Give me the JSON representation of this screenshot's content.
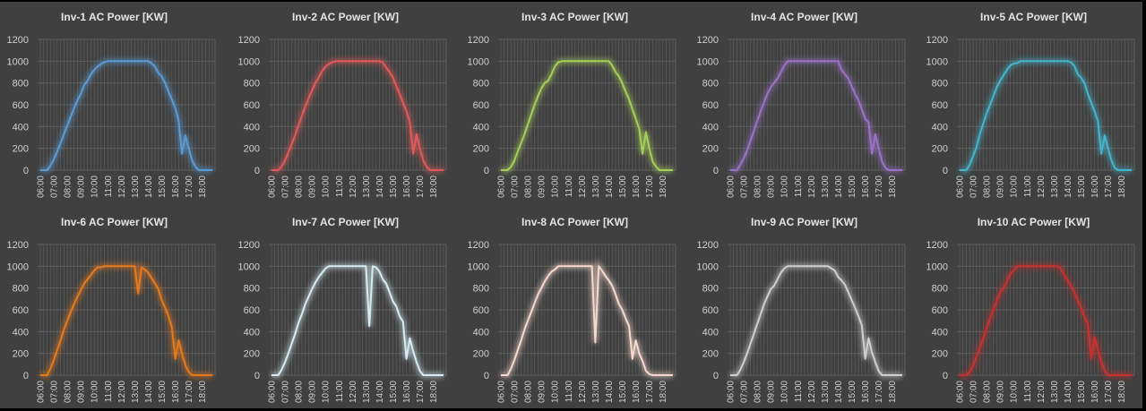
{
  "chart_data": [
    {
      "type": "line",
      "title": "Inv-1 AC Power [KW]",
      "color": "#5b9bd5",
      "xlabel": "",
      "ylabel": "",
      "ylim": [
        0,
        1200
      ],
      "yticks": [
        0,
        200,
        400,
        600,
        800,
        1000,
        1200
      ],
      "xtick_labels": [
        "06:00",
        "07:00",
        "08:00",
        "09:00",
        "10:00",
        "11:00",
        "12:00",
        "13:00",
        "14:00",
        "15:00",
        "16:00",
        "17:00",
        "18:00"
      ],
      "grid": true,
      "values": [
        0,
        0,
        0,
        40,
        100,
        170,
        250,
        330,
        410,
        490,
        570,
        640,
        700,
        780,
        820,
        880,
        920,
        950,
        975,
        990,
        1000,
        1000,
        1000,
        1000,
        1000,
        1000,
        1000,
        1000,
        1000,
        1000,
        1000,
        1000,
        1000,
        980,
        950,
        890,
        860,
        800,
        720,
        650,
        570,
        450,
        150,
        320,
        200,
        90,
        30,
        0,
        0,
        0,
        0,
        0
      ]
    },
    {
      "type": "line",
      "title": "Inv-2 AC Power [KW]",
      "color": "#e05a5a",
      "ylim": [
        0,
        1200
      ],
      "yticks": [
        0,
        200,
        400,
        600,
        800,
        1000,
        1200
      ],
      "xtick_labels": [
        "06:00",
        "07:00",
        "08:00",
        "09:00",
        "10:00",
        "11:00",
        "12:00",
        "13:00",
        "14:00",
        "15:00",
        "16:00",
        "17:00",
        "18:00"
      ],
      "grid": true,
      "values": [
        0,
        0,
        0,
        30,
        90,
        160,
        240,
        320,
        410,
        500,
        580,
        660,
        730,
        800,
        850,
        910,
        950,
        975,
        990,
        1000,
        1000,
        1000,
        1000,
        1000,
        1000,
        1000,
        1000,
        1000,
        1000,
        1000,
        1000,
        1000,
        1000,
        990,
        940,
        900,
        850,
        770,
        700,
        620,
        540,
        440,
        150,
        330,
        200,
        90,
        30,
        0,
        0,
        0,
        0,
        0
      ]
    },
    {
      "type": "line",
      "title": "Inv-3 AC Power [KW]",
      "color": "#a5cf5a",
      "ylim": [
        0,
        1200
      ],
      "yticks": [
        0,
        200,
        400,
        600,
        800,
        1000,
        1200
      ],
      "xtick_labels": [
        "06:00",
        "07:00",
        "08:00",
        "09:00",
        "10:00",
        "11:00",
        "12:00",
        "13:00",
        "14:00",
        "15:00",
        "16:00",
        "17:00",
        "18:00"
      ],
      "grid": true,
      "values": [
        0,
        0,
        0,
        30,
        90,
        170,
        250,
        330,
        420,
        510,
        600,
        680,
        750,
        800,
        820,
        880,
        950,
        990,
        1000,
        1000,
        1000,
        1000,
        1000,
        1000,
        1000,
        1000,
        1000,
        1000,
        1000,
        1000,
        1000,
        1000,
        1000,
        960,
        900,
        860,
        800,
        720,
        650,
        560,
        470,
        380,
        150,
        350,
        200,
        80,
        30,
        0,
        0,
        0,
        0,
        0
      ]
    },
    {
      "type": "line",
      "title": "Inv-4 AC Power [KW]",
      "color": "#9a73c8",
      "ylim": [
        0,
        1200
      ],
      "yticks": [
        0,
        200,
        400,
        600,
        800,
        1000,
        1200
      ],
      "xtick_labels": [
        "06:00",
        "07:00",
        "08:00",
        "09:00",
        "10:00",
        "11:00",
        "12:00",
        "13:00",
        "14:00",
        "15:00",
        "16:00",
        "17:00",
        "18:00"
      ],
      "grid": true,
      "values": [
        0,
        0,
        0,
        50,
        110,
        180,
        270,
        360,
        450,
        540,
        620,
        700,
        760,
        800,
        840,
        900,
        960,
        1000,
        1000,
        1000,
        1000,
        1000,
        1000,
        1000,
        1000,
        1000,
        1000,
        1000,
        1000,
        1000,
        1000,
        1000,
        1000,
        920,
        880,
        840,
        770,
        700,
        640,
        560,
        470,
        440,
        150,
        330,
        200,
        80,
        20,
        0,
        0,
        0,
        0,
        0
      ]
    },
    {
      "type": "line",
      "title": "Inv-5 AC Power [KW]",
      "color": "#45b4cc",
      "ylim": [
        0,
        1200
      ],
      "yticks": [
        0,
        200,
        400,
        600,
        800,
        1000,
        1200
      ],
      "xtick_labels": [
        "06:00",
        "07:00",
        "08:00",
        "09:00",
        "10:00",
        "11:00",
        "12:00",
        "13:00",
        "14:00",
        "15:00",
        "16:00",
        "17:00",
        "18:00"
      ],
      "grid": true,
      "values": [
        0,
        0,
        0,
        50,
        130,
        210,
        330,
        430,
        520,
        600,
        680,
        760,
        820,
        870,
        920,
        960,
        980,
        980,
        1000,
        1000,
        1000,
        1000,
        1000,
        1000,
        1000,
        1000,
        1000,
        1000,
        1000,
        1000,
        1000,
        1000,
        1000,
        990,
        960,
        880,
        850,
        800,
        700,
        620,
        540,
        450,
        150,
        320,
        200,
        90,
        20,
        0,
        0,
        0,
        0,
        0
      ]
    },
    {
      "type": "line",
      "title": "Inv-6 AC Power [KW]",
      "color": "#e57a1e",
      "ylim": [
        0,
        1200
      ],
      "yticks": [
        0,
        200,
        400,
        600,
        800,
        1000,
        1200
      ],
      "xtick_labels": [
        "06:00",
        "07:00",
        "08:00",
        "09:00",
        "10:00",
        "11:00",
        "12:00",
        "13:00",
        "14:00",
        "15:00",
        "16:00",
        "17:00",
        "18:00"
      ],
      "grid": true,
      "values": [
        0,
        0,
        0,
        60,
        140,
        230,
        320,
        420,
        500,
        580,
        650,
        720,
        780,
        840,
        880,
        920,
        960,
        990,
        990,
        1000,
        1000,
        1000,
        1000,
        1000,
        1000,
        1000,
        1000,
        1000,
        1000,
        750,
        990,
        970,
        940,
        890,
        840,
        790,
        690,
        620,
        540,
        440,
        150,
        320,
        200,
        90,
        30,
        0,
        0,
        0,
        0,
        0,
        0,
        0
      ]
    },
    {
      "type": "line",
      "title": "Inv-7 AC Power [KW]",
      "color": "#d6ecf2",
      "ylim": [
        0,
        1200
      ],
      "yticks": [
        0,
        200,
        400,
        600,
        800,
        1000,
        1200
      ],
      "xtick_labels": [
        "06:00",
        "07:00",
        "08:00",
        "09:00",
        "10:00",
        "11:00",
        "12:00",
        "13:00",
        "14:00",
        "15:00",
        "16:00",
        "17:00",
        "18:00"
      ],
      "grid": true,
      "values": [
        0,
        0,
        0,
        50,
        120,
        200,
        290,
        380,
        480,
        560,
        650,
        720,
        790,
        850,
        900,
        940,
        980,
        1000,
        1000,
        1000,
        1000,
        1000,
        1000,
        1000,
        1000,
        1000,
        1000,
        1000,
        1000,
        450,
        1000,
        990,
        950,
        880,
        840,
        760,
        680,
        630,
        540,
        490,
        150,
        340,
        220,
        120,
        40,
        0,
        0,
        0,
        0,
        0,
        0,
        0
      ]
    },
    {
      "type": "line",
      "title": "Inv-8 AC Power [KW]",
      "color": "#f5d9cc",
      "ylim": [
        0,
        1200
      ],
      "yticks": [
        0,
        200,
        400,
        600,
        800,
        1000,
        1200
      ],
      "xtick_labels": [
        "06:00",
        "07:00",
        "08:00",
        "09:00",
        "10:00",
        "11:00",
        "12:00",
        "13:00",
        "14:00",
        "15:00",
        "16:00",
        "17:00",
        "18:00"
      ],
      "grid": true,
      "values": [
        0,
        0,
        0,
        60,
        140,
        230,
        320,
        420,
        500,
        580,
        660,
        740,
        800,
        860,
        910,
        950,
        970,
        1000,
        1000,
        1000,
        1000,
        1000,
        1000,
        1000,
        1000,
        1000,
        1000,
        1000,
        300,
        1000,
        960,
        910,
        870,
        820,
        740,
        650,
        600,
        520,
        450,
        150,
        320,
        200,
        130,
        40,
        10,
        0,
        0,
        0,
        0,
        0,
        0,
        0
      ]
    },
    {
      "type": "line",
      "title": "Inv-9 AC Power [KW]",
      "color": "#cfcfcf",
      "ylim": [
        0,
        1200
      ],
      "yticks": [
        0,
        200,
        400,
        600,
        800,
        1000,
        1200
      ],
      "xtick_labels": [
        "06:00",
        "07:00",
        "08:00",
        "09:00",
        "10:00",
        "11:00",
        "12:00",
        "13:00",
        "14:00",
        "15:00",
        "16:00",
        "17:00",
        "18:00"
      ],
      "grid": true,
      "values": [
        0,
        0,
        0,
        50,
        120,
        200,
        290,
        380,
        470,
        560,
        650,
        720,
        790,
        820,
        880,
        940,
        980,
        1000,
        1000,
        1000,
        1000,
        1000,
        1000,
        1000,
        1000,
        1000,
        1000,
        1000,
        1000,
        1000,
        980,
        960,
        900,
        870,
        830,
        760,
        690,
        620,
        540,
        460,
        150,
        340,
        210,
        120,
        40,
        0,
        0,
        0,
        0,
        0,
        0,
        0
      ]
    },
    {
      "type": "line",
      "title": "Inv-10 AC Power [KW]",
      "color": "#c8302e",
      "ylim": [
        0,
        1200
      ],
      "yticks": [
        0,
        200,
        400,
        600,
        800,
        1000,
        1200
      ],
      "xtick_labels": [
        "06:00",
        "07:00",
        "08:00",
        "09:00",
        "10:00",
        "11:00",
        "12:00",
        "13:00",
        "14:00",
        "15:00",
        "16:00",
        "17:00",
        "18:00"
      ],
      "grid": true,
      "values": [
        0,
        0,
        0,
        30,
        90,
        170,
        250,
        340,
        430,
        520,
        600,
        680,
        760,
        800,
        860,
        930,
        960,
        1000,
        1000,
        1000,
        1000,
        1000,
        1000,
        1000,
        1000,
        1000,
        1000,
        1000,
        1000,
        1000,
        980,
        920,
        870,
        820,
        760,
        690,
        620,
        540,
        470,
        150,
        350,
        230,
        120,
        40,
        0,
        0,
        0,
        0,
        0,
        0,
        0,
        0
      ]
    }
  ]
}
